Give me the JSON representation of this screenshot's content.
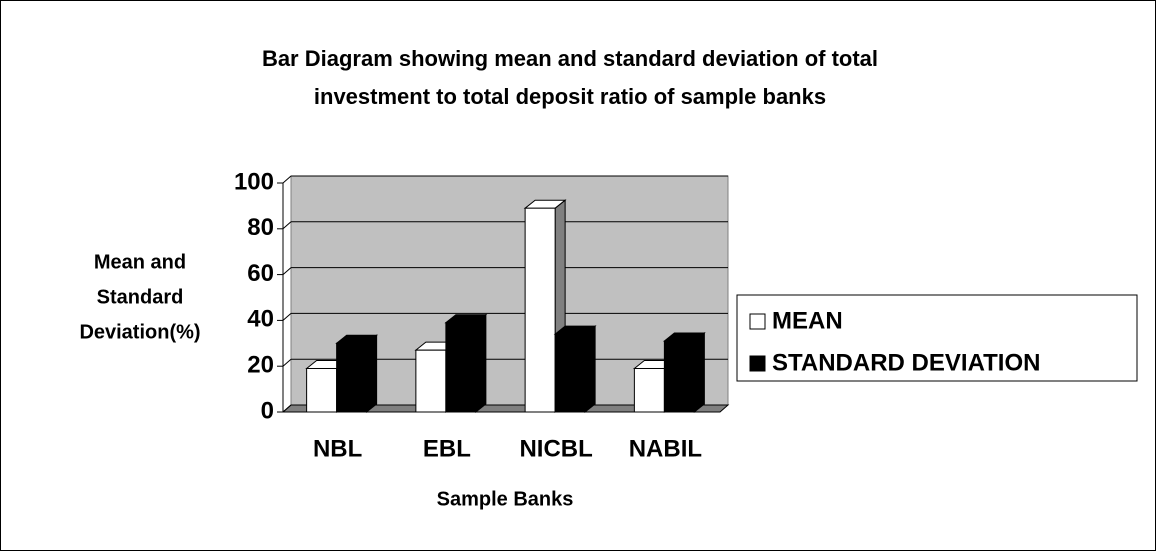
{
  "chart_data": {
    "type": "bar3d",
    "title": [
      "Bar Diagram showing mean and standard deviation of total",
      "investment to total deposit ratio of sample banks"
    ],
    "y_label": [
      "Mean and",
      "Standard",
      "Deviation(%)"
    ],
    "x_label": "Sample Banks",
    "categories": [
      "NBL",
      "EBL",
      "NICBL",
      "NABIL"
    ],
    "series": [
      {
        "name": "MEAN",
        "color": "#ffffff",
        "values": [
          19,
          27,
          89,
          19
        ]
      },
      {
        "name": "STANDARD DEVIATION",
        "color": "#000000",
        "values": [
          30,
          39,
          34,
          31
        ]
      }
    ],
    "ylim": [
      0,
      100
    ],
    "yticks": [
      0,
      20,
      40,
      60,
      80,
      100
    ],
    "grid": true,
    "legend": "right"
  }
}
